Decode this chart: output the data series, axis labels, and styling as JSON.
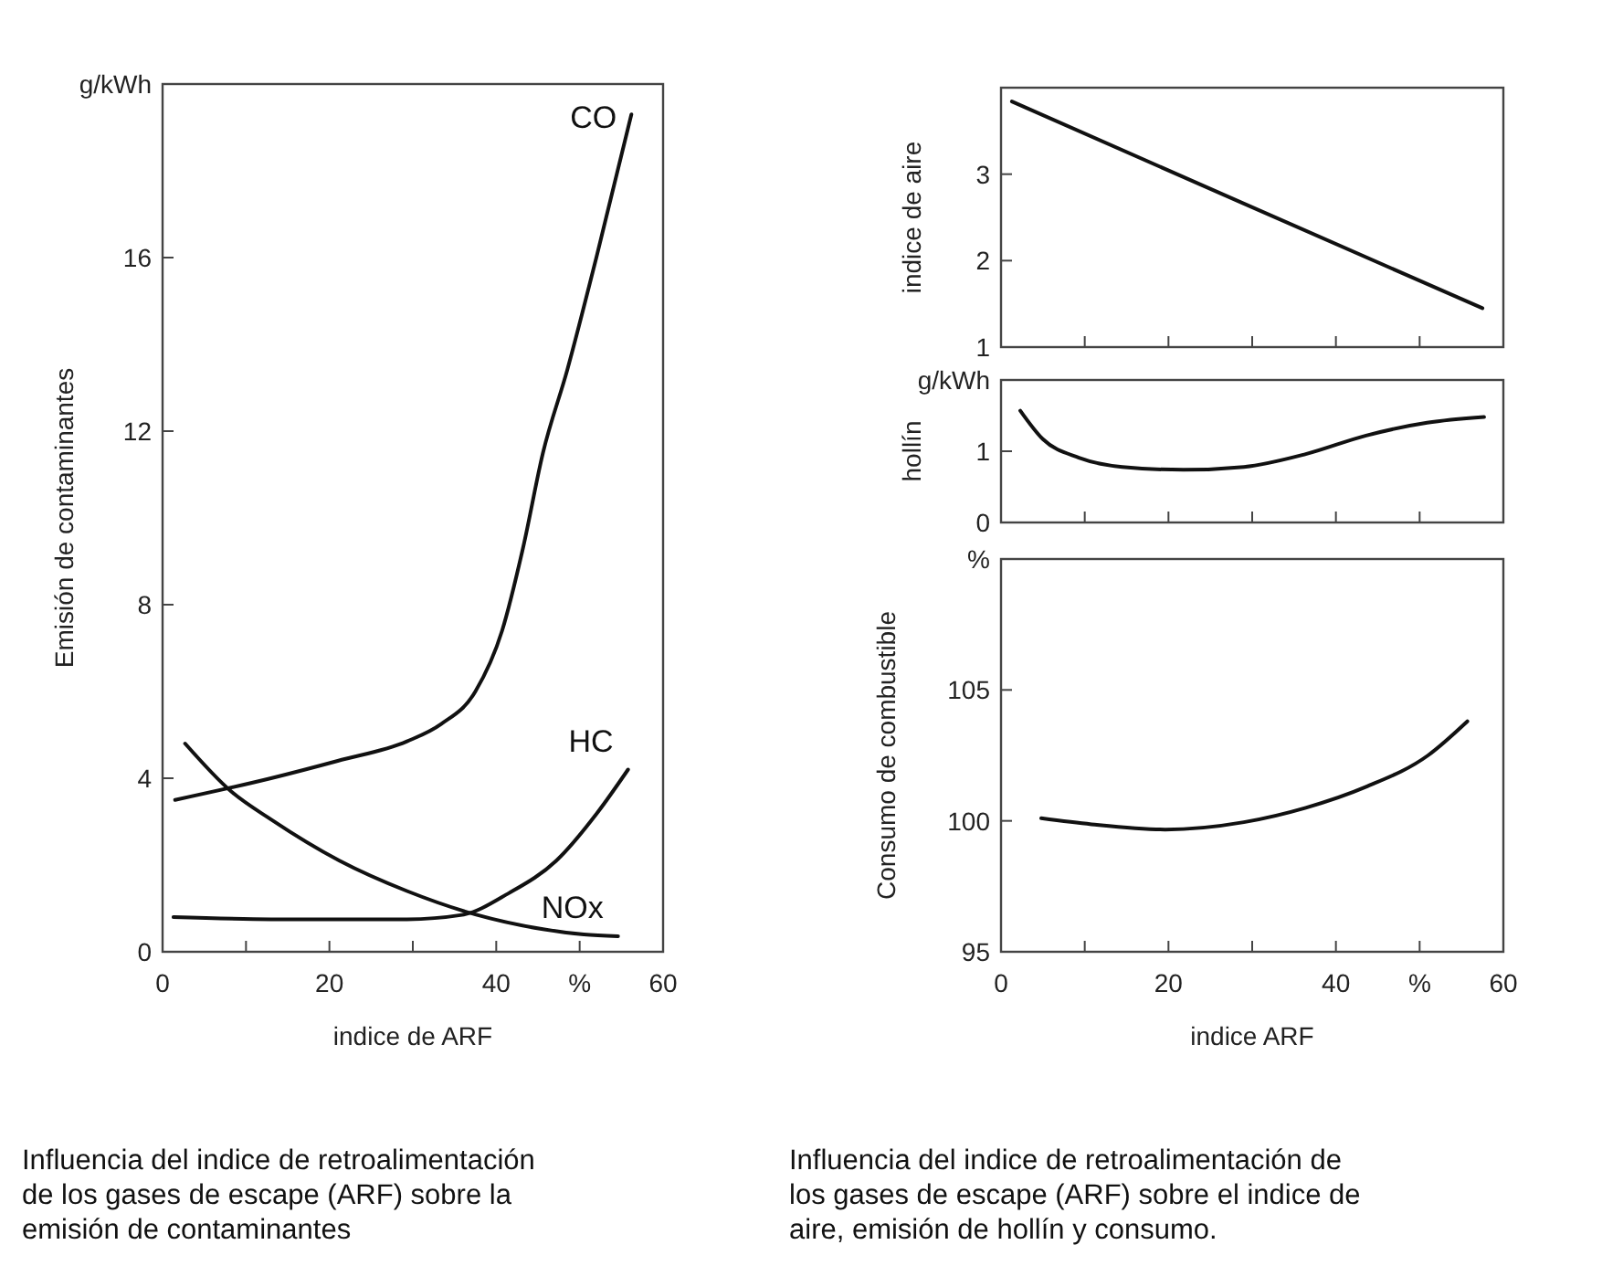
{
  "chart_data": [
    {
      "type": "line",
      "xlabel": "indice de ARF",
      "ylabel": "Emisión de contaminantes",
      "xlim": [
        0,
        60
      ],
      "ylim": [
        0,
        20
      ],
      "xticks": [
        0,
        {
          "value": 10,
          "label": null
        },
        20,
        {
          "value": 30,
          "label": null
        },
        40,
        {
          "value": 50,
          "label": "%"
        },
        60
      ],
      "yticks": [
        0,
        4,
        8,
        12,
        16,
        {
          "value": 20,
          "label": "g/kWh"
        }
      ],
      "series": [
        {
          "name": "CO",
          "color": "#111111",
          "x": [
            1.5,
            13,
            21,
            29.3,
            33.4,
            37.5,
            40.7,
            43.2,
            45.6,
            48.5,
            52,
            56.2
          ],
          "values": [
            3.5,
            4.0,
            4.4,
            4.85,
            5.25,
            6.0,
            7.4,
            9.3,
            11.5,
            13.4,
            16.0,
            19.3
          ]
        },
        {
          "name": "HC",
          "color": "#111111",
          "x": [
            1.3,
            13,
            29.3,
            35.9,
            41.5,
            47.2,
            52.1,
            55.8
          ],
          "values": [
            0.8,
            0.75,
            0.75,
            0.85,
            1.35,
            2.1,
            3.2,
            4.2
          ]
        },
        {
          "name": "NOx",
          "color": "#111111",
          "x": [
            2.7,
            8.2,
            13,
            21.2,
            29.3,
            37.5,
            45.6,
            50.5,
            54.6
          ],
          "values": [
            4.8,
            3.7,
            3.05,
            2.1,
            1.4,
            0.86,
            0.52,
            0.4,
            0.36
          ]
        }
      ],
      "annotations": [
        "Influencia del indice de retroalimentación de los gases de escape (ARF) sobre la emisión de contaminantes"
      ]
    },
    {
      "type": "line",
      "ylabel": "indice de aire",
      "xlim": [
        0,
        60
      ],
      "ylim": [
        1,
        4
      ],
      "tick_labels": "y",
      "xticks": [
        0,
        10,
        20,
        30,
        40,
        50,
        60
      ],
      "yticks": [
        1,
        2,
        3
      ],
      "series": [
        {
          "color": "#111111",
          "x": [
            1.3,
            29,
            57.5
          ],
          "values": [
            3.84,
            2.66,
            1.45
          ]
        }
      ]
    },
    {
      "type": "line",
      "ylabel": "hollín",
      "xlim": [
        0,
        60
      ],
      "ylim": [
        0,
        2
      ],
      "tick_labels": "y",
      "xticks": [
        0,
        10,
        20,
        30,
        40,
        50,
        60
      ],
      "yticks": [
        0,
        1,
        {
          "value": 2,
          "label": "g/kWh"
        }
      ],
      "series": [
        {
          "color": "#111111",
          "x": [
            2.3,
            5,
            9.3,
            14.5,
            21.8,
            29,
            36.4,
            43.6,
            50.9,
            57.7
          ],
          "values": [
            1.57,
            1.17,
            0.91,
            0.78,
            0.74,
            0.78,
            0.96,
            1.22,
            1.4,
            1.48
          ]
        }
      ]
    },
    {
      "type": "line",
      "xlabel": "indice ARF",
      "ylabel": "Consumo de combustible",
      "xlim": [
        0,
        60
      ],
      "ylim": [
        95,
        110
      ],
      "xticks": [
        0,
        {
          "value": 10,
          "label": null
        },
        20,
        {
          "value": 30,
          "label": null
        },
        40,
        {
          "value": 50,
          "label": "%"
        },
        60
      ],
      "yticks": [
        95,
        100,
        105,
        {
          "value": 110,
          "label": "%"
        }
      ],
      "series": [
        {
          "color": "#111111",
          "x": [
            4.8,
            10.8,
            19.6,
            29,
            36.4,
            43.6,
            51,
            55.7
          ],
          "values": [
            100.1,
            99.87,
            99.67,
            99.95,
            100.5,
            101.3,
            102.5,
            103.8
          ]
        }
      ],
      "annotations": [
        "Influencia del indice de retroalimentación de los gases de escape (ARF) sobre el indice de aire, emisión de hollín y consumo."
      ]
    }
  ]
}
